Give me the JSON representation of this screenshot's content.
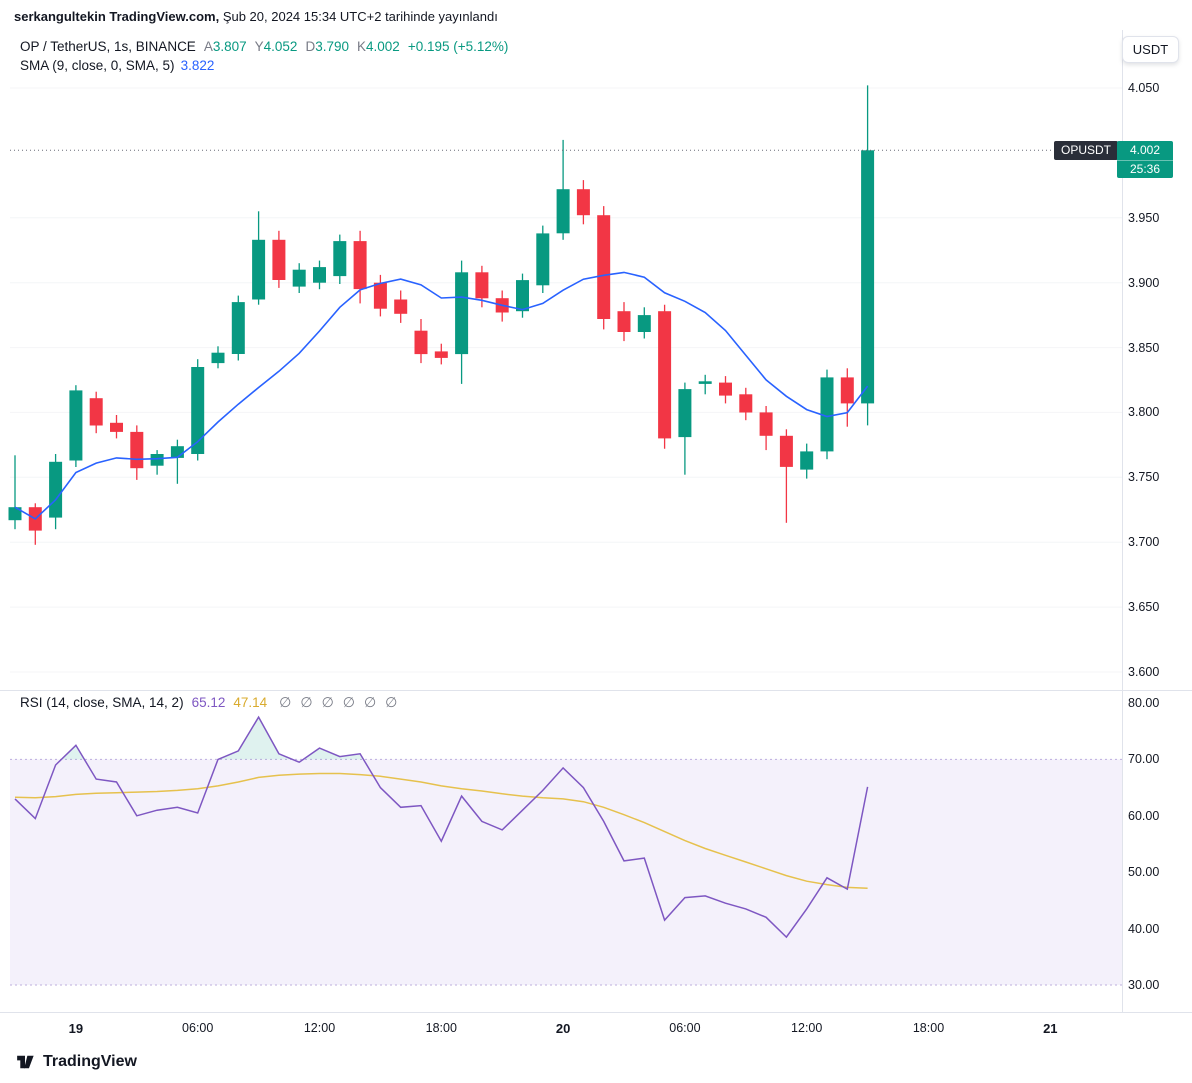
{
  "header": {
    "publisher": "serkangultekin TradingView.com,",
    "published": "Şub 20, 2024 15:34 UTC+2 tarihinde yayınlandı"
  },
  "toolbar": {
    "currency_button": "USDT"
  },
  "symbol_legend": {
    "title": "OP / TetherUS, 1s, BINANCE",
    "ohlc": [
      {
        "k": "A",
        "v": "3.807"
      },
      {
        "k": "Y",
        "v": "4.052"
      },
      {
        "k": "D",
        "v": "3.790"
      },
      {
        "k": "K",
        "v": "4.002"
      }
    ],
    "change": "+0.195 (+5.12%)"
  },
  "sma_legend": {
    "label": "SMA (9, close, 0, SMA, 5)",
    "value": "3.822"
  },
  "rsi_legend": {
    "label": "RSI (14, close, SMA, 14, 2)",
    "rsi_value": "65.12",
    "ma_value": "47.14",
    "empty_sets": [
      "∅",
      "∅",
      "∅",
      "∅",
      "∅",
      "∅"
    ]
  },
  "price_label": {
    "symbol": "OPUSDT",
    "price": "4.002",
    "countdown": "25:36"
  },
  "watermark": {
    "brand": "TradingView"
  },
  "chart_data": {
    "type": "candlestick",
    "title": "OP / TetherUS, 1s, BINANCE",
    "sma_period": 9,
    "price_axis": {
      "min": 3.6,
      "max": 4.05,
      "ticks": [
        {
          "label": "4.050",
          "value": 4.05
        },
        {
          "label": "3.950",
          "value": 3.95
        },
        {
          "label": "3.900",
          "value": 3.9
        },
        {
          "label": "3.850",
          "value": 3.85
        },
        {
          "label": "3.800",
          "value": 3.8
        },
        {
          "label": "3.750",
          "value": 3.75
        },
        {
          "label": "3.700",
          "value": 3.7
        },
        {
          "label": "3.650",
          "value": 3.65
        },
        {
          "label": "3.600",
          "value": 3.6
        }
      ],
      "last_price": {
        "value": 4.002,
        "label": "4.002"
      }
    },
    "time_axis": {
      "ticks": [
        {
          "label": "19",
          "candle_index": 3,
          "major": true
        },
        {
          "label": "06:00",
          "candle_index": 9,
          "major": false
        },
        {
          "label": "12:00",
          "candle_index": 15,
          "major": false
        },
        {
          "label": "18:00",
          "candle_index": 21,
          "major": false
        },
        {
          "label": "20",
          "candle_index": 27,
          "major": true
        },
        {
          "label": "06:00",
          "candle_index": 33,
          "major": false
        },
        {
          "label": "12:00",
          "candle_index": 39,
          "major": false
        },
        {
          "label": "18:00",
          "candle_index": 45,
          "major": false
        },
        {
          "label": "21",
          "candle_index": 51,
          "major": true
        }
      ]
    },
    "candles": [
      [
        3.717,
        3.767,
        3.71,
        3.727
      ],
      [
        3.727,
        3.73,
        3.698,
        3.709
      ],
      [
        3.719,
        3.768,
        3.71,
        3.762
      ],
      [
        3.763,
        3.821,
        3.758,
        3.817
      ],
      [
        3.811,
        3.816,
        3.784,
        3.79
      ],
      [
        3.792,
        3.798,
        3.78,
        3.785
      ],
      [
        3.785,
        3.79,
        3.748,
        3.757
      ],
      [
        3.759,
        3.771,
        3.752,
        3.768
      ],
      [
        3.765,
        3.779,
        3.745,
        3.774
      ],
      [
        3.768,
        3.841,
        3.763,
        3.835
      ],
      [
        3.838,
        3.851,
        3.834,
        3.846
      ],
      [
        3.845,
        3.89,
        3.84,
        3.885
      ],
      [
        3.887,
        3.955,
        3.883,
        3.933
      ],
      [
        3.933,
        3.94,
        3.896,
        3.902
      ],
      [
        3.897,
        3.915,
        3.892,
        3.91
      ],
      [
        3.9,
        3.917,
        3.895,
        3.912
      ],
      [
        3.905,
        3.937,
        3.899,
        3.932
      ],
      [
        3.932,
        3.94,
        3.884,
        3.895
      ],
      [
        3.9,
        3.906,
        3.874,
        3.88
      ],
      [
        3.887,
        3.894,
        3.869,
        3.876
      ],
      [
        3.863,
        3.872,
        3.838,
        3.845
      ],
      [
        3.847,
        3.853,
        3.837,
        3.842
      ],
      [
        3.845,
        3.917,
        3.822,
        3.908
      ],
      [
        3.908,
        3.913,
        3.881,
        3.888
      ],
      [
        3.888,
        3.894,
        3.87,
        3.877
      ],
      [
        3.878,
        3.907,
        3.873,
        3.902
      ],
      [
        3.898,
        3.944,
        3.892,
        3.938
      ],
      [
        3.938,
        4.01,
        3.933,
        3.972
      ],
      [
        3.972,
        3.979,
        3.945,
        3.952
      ],
      [
        3.952,
        3.959,
        3.864,
        3.872
      ],
      [
        3.878,
        3.885,
        3.855,
        3.862
      ],
      [
        3.862,
        3.881,
        3.857,
        3.875
      ],
      [
        3.878,
        3.883,
        3.772,
        3.78
      ],
      [
        3.781,
        3.823,
        3.752,
        3.818
      ],
      [
        3.822,
        3.829,
        3.814,
        3.824
      ],
      [
        3.823,
        3.828,
        3.807,
        3.813
      ],
      [
        3.814,
        3.819,
        3.794,
        3.8
      ],
      [
        3.8,
        3.805,
        3.771,
        3.782
      ],
      [
        3.782,
        3.787,
        3.715,
        3.758
      ],
      [
        3.756,
        3.776,
        3.749,
        3.77
      ],
      [
        3.77,
        3.833,
        3.764,
        3.827
      ],
      [
        3.827,
        3.834,
        3.789,
        3.807
      ],
      [
        3.807,
        4.052,
        3.79,
        4.002
      ]
    ],
    "rsi": {
      "upper_band": 70,
      "lower_band": 30,
      "axis_ticks": [
        {
          "label": "80.00",
          "value": 80
        },
        {
          "label": "70.00",
          "value": 70
        },
        {
          "label": "60.00",
          "value": 60
        },
        {
          "label": "50.00",
          "value": 50
        },
        {
          "label": "40.00",
          "value": 40
        },
        {
          "label": "30.00",
          "value": 30
        }
      ],
      "values": [
        63,
        59.5,
        69,
        72.5,
        66.5,
        66,
        60,
        61,
        61.5,
        60.5,
        70,
        71.5,
        77.5,
        71,
        69.5,
        72,
        70.5,
        71,
        65,
        61.5,
        61.8,
        55.5,
        63.5,
        59,
        57.5,
        61,
        64.5,
        68.5,
        65,
        59,
        52,
        52.5,
        41.5,
        45.5,
        45.8,
        44.5,
        43.5,
        42,
        38.5,
        43.5,
        49,
        47,
        65.12
      ],
      "ma": [
        63.3,
        63.2,
        63.4,
        63.8,
        64.0,
        64.1,
        64.2,
        64.3,
        64.5,
        64.8,
        65.3,
        66.0,
        66.8,
        67.2,
        67.4,
        67.5,
        67.5,
        67.3,
        67.0,
        66.5,
        66.0,
        65.3,
        64.8,
        64.4,
        63.9,
        63.5,
        63.2,
        63.0,
        62.5,
        61.5,
        60.2,
        58.8,
        57.2,
        55.6,
        54.2,
        53.0,
        51.8,
        50.6,
        49.4,
        48.4,
        47.8,
        47.3,
        47.14
      ]
    },
    "colors": {
      "up": "#089981",
      "down": "#f23645",
      "sma": "#2962ff",
      "rsi_line": "#7e57c2",
      "rsi_ma": "#e6c14d",
      "rsi_band_fill": "#f4f1fb",
      "rsi_band_border": "#bdaede",
      "last_price_line": "#6a6d78",
      "price_badge_bg": "#089981",
      "symbol_badge_bg": "#2a2e39",
      "grid": "#f4f5f7",
      "separator": "#e0e3eb"
    }
  }
}
